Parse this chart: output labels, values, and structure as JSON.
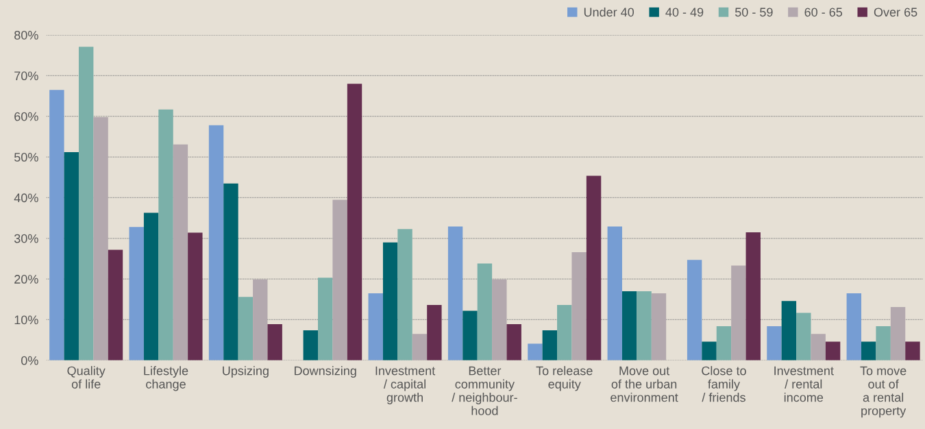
{
  "chart_data": {
    "type": "bar",
    "categories": [
      "Quality\nof life",
      "Lifestyle\nchange",
      "Upsizing",
      "Downsizing",
      "Investment\n/ capital\ngrowth",
      "Better\ncommunity\n/ neighbour-\nhood",
      "To release\nequity",
      "Move out\nof the urban\nenvironment",
      "Close to\nfamily\n/ friends",
      "Investment\n/ rental\nincome",
      "To move\nout of\na rental\nproperty"
    ],
    "series": [
      {
        "name": "Under 40",
        "color": "#769dd3",
        "values": [
          66.5,
          32.8,
          57.8,
          0,
          16.5,
          32.9,
          4.1,
          32.9,
          24.7,
          8.4,
          16.5
        ]
      },
      {
        "name": "40 - 49",
        "color": "#00646e",
        "values": [
          51.2,
          36.3,
          43.5,
          7.4,
          29.0,
          12.2,
          7.4,
          17.0,
          4.6,
          14.6,
          4.6
        ]
      },
      {
        "name": "50 - 59",
        "color": "#7bb0a9",
        "values": [
          77.1,
          61.7,
          15.6,
          20.3,
          32.3,
          23.8,
          13.6,
          17.0,
          8.4,
          11.7,
          8.4
        ]
      },
      {
        "name": "60 - 65",
        "color": "#b3a8ae",
        "values": [
          59.8,
          53.1,
          19.9,
          39.5,
          6.5,
          19.9,
          26.6,
          16.5,
          23.3,
          6.5,
          13.1
        ]
      },
      {
        "name": "Over 65",
        "color": "#652e50",
        "values": [
          27.2,
          31.4,
          8.9,
          68.0,
          13.6,
          8.9,
          45.4,
          0,
          31.5,
          4.6,
          4.6
        ]
      }
    ],
    "ylim": [
      0,
      80
    ],
    "yticks": [
      {
        "value": 0,
        "label": "0%"
      },
      {
        "value": 10,
        "label": "10%"
      },
      {
        "value": 20,
        "label": "20%"
      },
      {
        "value": 30,
        "label": "30%"
      },
      {
        "value": 40,
        "label": "40%"
      },
      {
        "value": 50,
        "label": "50%"
      },
      {
        "value": 60,
        "label": "60%"
      },
      {
        "value": 70,
        "label": "70%"
      },
      {
        "value": 80,
        "label": "80%"
      }
    ],
    "grid": "y",
    "legend": "top right"
  }
}
